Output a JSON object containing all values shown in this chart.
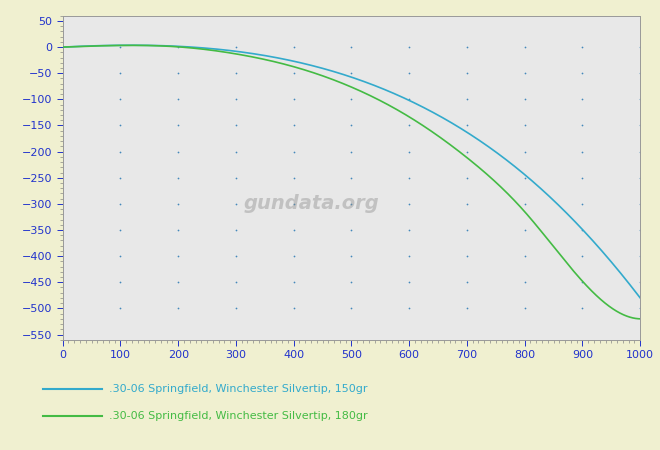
{
  "bg_color": "#f0f0d0",
  "plot_bg_color": "#e8e8e8",
  "xlim": [
    0,
    1000
  ],
  "ylim": [
    -560,
    60
  ],
  "xticks": [
    0,
    100,
    200,
    300,
    400,
    500,
    600,
    700,
    800,
    900,
    1000
  ],
  "yticks": [
    50,
    0,
    -50,
    -100,
    -150,
    -200,
    -250,
    -300,
    -350,
    -400,
    -450,
    -500,
    -550
  ],
  "dot_color": "#4488bb",
  "line1_color": "#33aacc",
  "line2_color": "#44bb44",
  "legend1": ".30-06 Springfield, Winchester Silvertip, 150gr",
  "legend2": ".30-06 Springfield, Winchester Silvertip, 180gr",
  "tick_color": "#2233cc",
  "tick_fontsize": 8,
  "legend_fontsize": 8,
  "x_knots": [
    0,
    100,
    200,
    300,
    400,
    500,
    600,
    700,
    800,
    900,
    1000
  ],
  "y_150gr": [
    0,
    3.5,
    1.5,
    -8.0,
    -27.0,
    -57.5,
    -102.0,
    -163.0,
    -244.0,
    -349.0,
    -480.0
  ],
  "y_180gr": [
    0,
    3.2,
    0.5,
    -13.0,
    -37.5,
    -76.5,
    -133.5,
    -211.5,
    -315.0,
    -448.0,
    -520.0
  ]
}
